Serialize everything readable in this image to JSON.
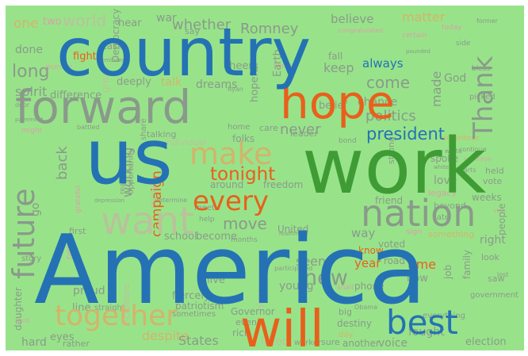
{
  "palette": {
    "blue": "#2472b4",
    "gray": "#8a9a8a",
    "orange": "#e8601c",
    "green": "#3f9c35",
    "tan": "#d3b46a",
    "pink": "#d7a1a5",
    "beige": "#b9c29a",
    "lblue": "#74a5cf"
  },
  "words": {
    "america": "America",
    "country": "country",
    "us": "us",
    "work": "work",
    "forward": "forward",
    "hope": "hope",
    "nation": "nation",
    "will": "will",
    "best": "best",
    "want": "want",
    "make": "make",
    "together": "together",
    "every": "every",
    "future": "future",
    "thank": "Thank",
    "tonight": "tonight",
    "president": "president",
    "new": "new",
    "move": "move",
    "politics": "politics",
    "never": "never",
    "come": "come",
    "keep": "keep",
    "always": "always",
    "whether": "whether",
    "believe": "believe",
    "matter": "matter",
    "long": "long",
    "spirit": "spirit",
    "world": "world",
    "one": "one",
    "campaign": "campaign",
    "back": "back",
    "working": "working",
    "made": "made",
    "god": "God",
    "chance": "chance",
    "belief": "belief",
    "dreams": "dreams",
    "difference": "difference",
    "talk": "talk",
    "cheers": "cheers",
    "romney": "Romney",
    "war": "war",
    "hear": "hear",
    "done": "done",
    "task": "task",
    "fight": "fight",
    "democracy": "Democracy",
    "earth": "Earth",
    "hopeful": "hopeful",
    "deeply": "deeply",
    "fall": "fall",
    "say": "say",
    "states": "States",
    "united": "United",
    "voice": "voice",
    "fought": "fought",
    "election": "election",
    "time": "time",
    "year": "year",
    "seen": "seen",
    "live": "live",
    "young": "young",
    "people": "people",
    "job": "job",
    "family": "family",
    "right": "right",
    "love": "love",
    "ahead": "ahead",
    "friend": "friend",
    "weeks": "weeks",
    "way": "way",
    "voted": "voted",
    "something": "something",
    "school": "school",
    "become": "become",
    "first": "first",
    "go": "go",
    "freedom": "freedom",
    "around": "around",
    "sometimes": "sometimes",
    "governor": "Governor",
    "despite": "despite",
    "hard": "hard",
    "daughter": "daughter",
    "proud": "proud",
    "line": "line",
    "eyes": "eyes",
    "rich": "rich",
    "even": "even",
    "sure": "sure",
    "another": "another",
    "phone": "phone",
    "road": "road",
    "know": "know",
    "now": "now",
    "spoke": "spoke",
    "strong": "strong",
    "held": "held",
    "vote": "vote",
    "legacy": "legacy",
    "history": "history",
    "military": "military",
    "fiercely": "fiercely",
    "lifted": "lifted",
    "incredible": "incredible",
    "leader": "leader",
    "care": "care",
    "folks": "folks",
    "home": "home",
    "meet": "meet",
    "months": "months",
    "story": "story",
    "straight": "straight",
    "destiny": "destiny",
    "patriotism": "patriotism",
    "worker": "worker",
    "opportunity": "opportunity",
    "talking": "talking",
    "share": "share",
    "volunteer": "volunteer",
    "continue": "continue",
    "picked": "picked",
    "bless": "bless",
    "two": "two",
    "journey": "journey",
    "great": "great",
    "side": "side",
    "former": "former",
    "congratulated": "congratulated",
    "certain": "certain",
    "today": "today",
    "bond": "bond",
    "help": "help",
    "look": "look",
    "saw": "saw",
    "government": "government",
    "everything": "everything",
    "sign": "sign",
    "late": "late",
    "big": "big",
    "day": "day",
    "obama": "Obama",
    "reaching": "reaching",
    "door": "door",
    "ryan": "Ryan",
    "individual": "individual",
    "reminded": "reminded",
    "pounded": "pounded",
    "reaffirmed": "reaffirmed",
    "participated": "participated",
    "determine": "determine",
    "depression": "depression",
    "beyond": "beyond",
    "rather": "rather",
    "might": "might",
    "hearts": "hearts",
    "rise": "rise",
    "shall": "shall",
    "grateful": "grateful",
    "father": "father",
    "battled": "battled",
    "pavement": "pavement",
    "common": "common",
    "white": "white",
    "white2": "white",
    "hopes": "hopes",
    "hard2": "hard",
    "lost": "lost"
  }
}
